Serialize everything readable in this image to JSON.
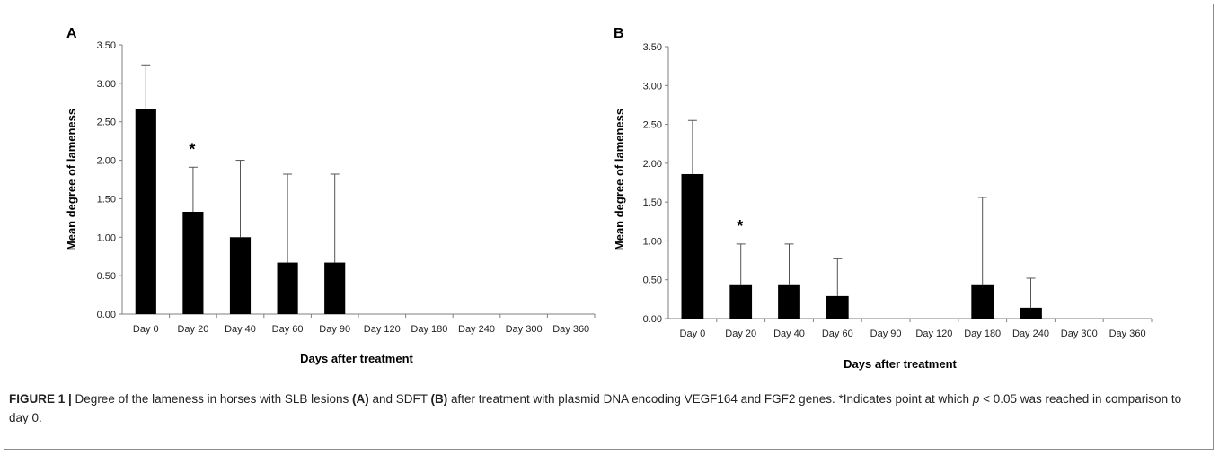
{
  "charts": [
    {
      "panel_label": "A",
      "chart_data": {
        "type": "bar",
        "categories": [
          "Day 0",
          "Day 20",
          "Day 40",
          "Day 60",
          "Day 90",
          "Day 120",
          "Day 180",
          "Day 240",
          "Day 300",
          "Day 360"
        ],
        "values": [
          2.67,
          1.33,
          1.0,
          0.67,
          0.67,
          0,
          0,
          0,
          0,
          0
        ],
        "error_upper": [
          0.57,
          0.58,
          1.0,
          1.15,
          1.15,
          0,
          0,
          0,
          0,
          0
        ],
        "significance": [
          "",
          "*",
          "",
          "",
          "",
          "",
          "",
          "",
          "",
          ""
        ],
        "xlabel": "Days after treatment",
        "ylabel": "Mean degree of lameness",
        "ylim": [
          0,
          3.5
        ],
        "yticks": [
          "0.00",
          "0.50",
          "1.00",
          "1.50",
          "2.00",
          "2.50",
          "3.00",
          "3.50"
        ],
        "grid": false,
        "bar_color": "#000000"
      }
    },
    {
      "panel_label": "B",
      "chart_data": {
        "type": "bar",
        "categories": [
          "Day 0",
          "Day 20",
          "Day 40",
          "Day 60",
          "Day 90",
          "Day 120",
          "Day 180",
          "Day 240",
          "Day 300",
          "Day 360"
        ],
        "values": [
          1.86,
          0.43,
          0.43,
          0.29,
          0,
          0,
          0.43,
          0.14,
          0,
          0
        ],
        "error_upper": [
          0.69,
          0.53,
          0.53,
          0.48,
          0,
          0,
          1.13,
          0.38,
          0,
          0
        ],
        "significance": [
          "",
          "*",
          "",
          "",
          "",
          "",
          "",
          "",
          "",
          ""
        ],
        "xlabel": "Days after treatment",
        "ylabel": "Mean degree of lameness",
        "ylim": [
          0,
          3.5
        ],
        "yticks": [
          "0.00",
          "0.50",
          "1.00",
          "1.50",
          "2.00",
          "2.50",
          "3.00",
          "3.50"
        ],
        "grid": false,
        "bar_color": "#000000"
      }
    }
  ],
  "caption": {
    "figure_label": "FIGURE 1 |",
    "text_1": " Degree of the lameness in horses with SLB lesions ",
    "ref_a": "(A)",
    "text_2": " and SDFT ",
    "ref_b": "(B)",
    "text_3": " after treatment with plasmid DNA encoding VEGF164 and FGF2 genes. *Indicates point at which ",
    "p_symbol": "p",
    "text_4": " < 0.05 was reached in comparison to day 0."
  }
}
